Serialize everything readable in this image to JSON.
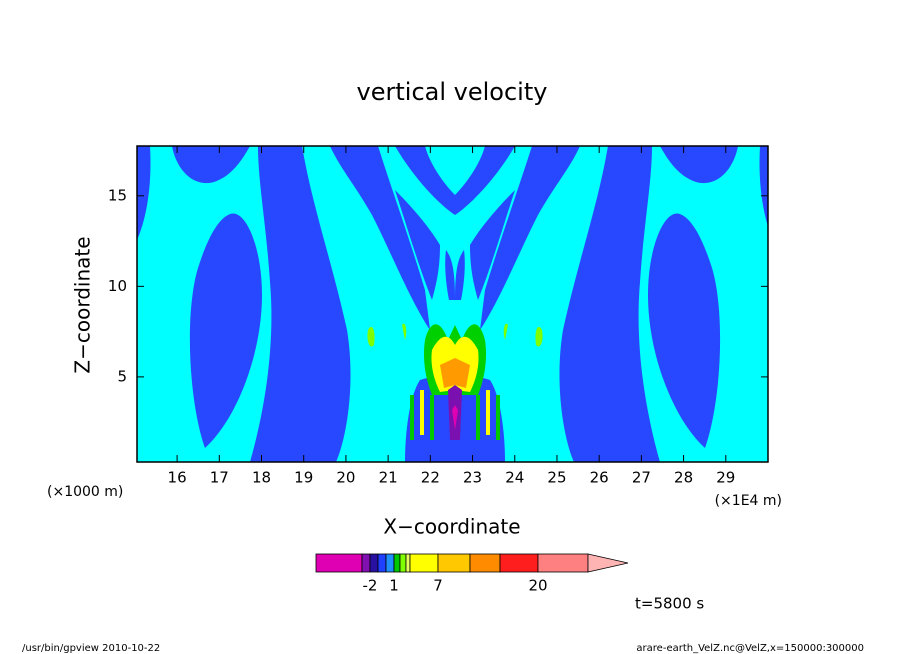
{
  "chart_data": {
    "type": "contour",
    "title": "vertical velocity",
    "xlabel": "X−coordinate",
    "ylabel": "Z−coordinate",
    "xunit": "(×1E4 m)",
    "yunit": "(×1000 m)",
    "xlim": [
      15.05,
      30.0
    ],
    "ylim": [
      0.3,
      17.75
    ],
    "xticks": [
      16,
      17,
      18,
      19,
      20,
      21,
      22,
      23,
      24,
      25,
      26,
      27,
      28,
      29
    ],
    "yticks": [
      5,
      10,
      15
    ],
    "colorbar": {
      "colors": [
        "#e000b4",
        "#8010b0",
        "#2810a0",
        "#2040ff",
        "#2090ff",
        "#00c800",
        "#80ff00",
        "#e8ff60",
        "#ffff00",
        "#ffc800",
        "#ff8c00",
        "#ff1e1e",
        "#ff8080",
        "#ffb4b4"
      ],
      "labels": [
        -2,
        1,
        7,
        20
      ]
    },
    "annotation": "t=5800 s",
    "footer_left": "/usr/bin/gpview   2010-10-22",
    "footer_right": "arare-earth_VelZ.nc@VelZ,x=150000:300000"
  }
}
